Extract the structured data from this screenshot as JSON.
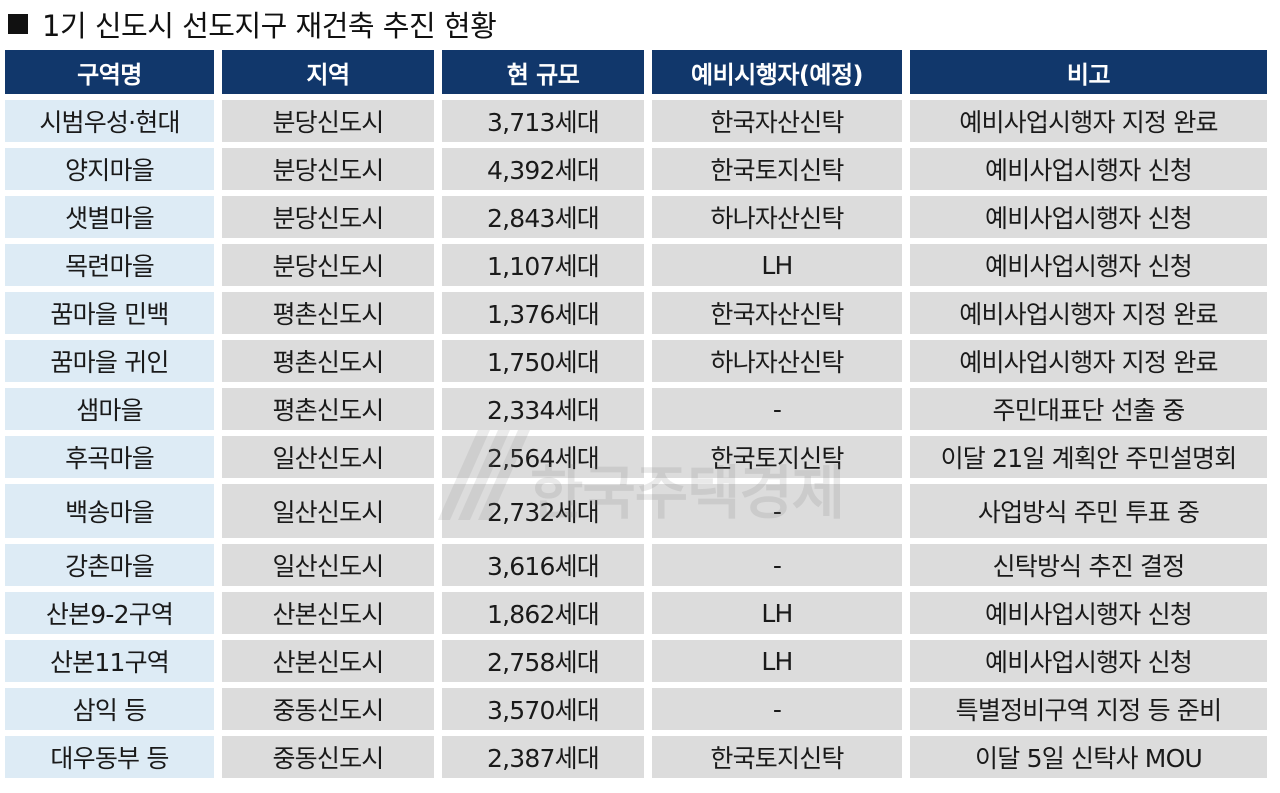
{
  "title": "1기 신도시 선도지구 재건축 추진 현황",
  "watermark": "한국주택경제",
  "headers": [
    "구역명",
    "지역",
    "현 규모",
    "예비시행자(예정)",
    "비고"
  ],
  "rows": [
    [
      "시범우성·현대",
      "분당신도시",
      "3,713세대",
      "한국자산신탁",
      "예비사업시행자 지정 완료"
    ],
    [
      "양지마을",
      "분당신도시",
      "4,392세대",
      "한국토지신탁",
      "예비사업시행자 신청"
    ],
    [
      "샛별마을",
      "분당신도시",
      "2,843세대",
      "하나자산신탁",
      "예비사업시행자 신청"
    ],
    [
      "목련마을",
      "분당신도시",
      "1,107세대",
      "LH",
      "예비사업시행자 신청"
    ],
    [
      "꿈마을 민백",
      "평촌신도시",
      "1,376세대",
      "한국자산신탁",
      "예비사업시행자 지정 완료"
    ],
    [
      "꿈마을 귀인",
      "평촌신도시",
      "1,750세대",
      "하나자산신탁",
      "예비사업시행자 지정 완료"
    ],
    [
      "샘마을",
      "평촌신도시",
      "2,334세대",
      "-",
      "주민대표단 선출 중"
    ],
    [
      "후곡마을",
      "일산신도시",
      "2,564세대",
      "한국토지신탁",
      "이달 21일 계획안 주민설명회"
    ],
    [
      "백송마을",
      "일산신도시",
      "2,732세대",
      "-",
      "사업방식 주민 투표 중"
    ],
    [
      "강촌마을",
      "일산신도시",
      "3,616세대",
      "-",
      "신탁방식 추진 결정"
    ],
    [
      "산본9-2구역",
      "산본신도시",
      "1,862세대",
      "LH",
      "예비사업시행자 신청"
    ],
    [
      "산본11구역",
      "산본신도시",
      "2,758세대",
      "LH",
      "예비사업시행자 신청"
    ],
    [
      "삼익 등",
      "중동신도시",
      "3,570세대",
      "-",
      "특별정비구역 지정 등 준비"
    ],
    [
      "대우동부 등",
      "중동신도시",
      "2,387세대",
      "한국토지신탁",
      "이달 5일 신탁사 MOU"
    ]
  ]
}
